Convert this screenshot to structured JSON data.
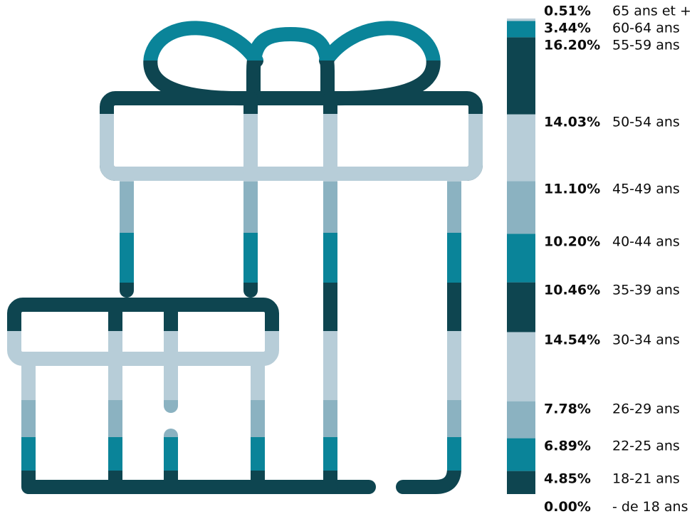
{
  "chart_data": {
    "type": "bar",
    "orientation": "stacked-vertical",
    "unit": "%",
    "categories": [
      "- de 18 ans",
      "18-21 ans",
      "22-25 ans",
      "26-29 ans",
      "30-34 ans",
      "35-39 ans",
      "40-44 ans",
      "45-49 ans",
      "50-54 ans",
      "55-59 ans",
      "60-64 ans",
      "65 ans et +"
    ],
    "values": [
      0.0,
      4.85,
      6.89,
      7.78,
      14.54,
      10.46,
      10.2,
      11.1,
      14.03,
      16.2,
      3.44,
      0.51
    ],
    "labels": [
      "0.00%",
      "4.85%",
      "6.89%",
      "7.78%",
      "14.54%",
      "10.46%",
      "10.20%",
      "11.10%",
      "14.03%",
      "16.20%",
      "3.44%",
      "0.51%"
    ],
    "colors": [
      "#0e4550",
      "#0e4550",
      "#0a8499",
      "#8bb2c1",
      "#b7cdd8",
      "#0e4550",
      "#0a8499",
      "#8bb2c1",
      "#b7cdd8",
      "#0e4550",
      "#0a8499",
      "#b7cdd8"
    ],
    "legend": "right"
  },
  "palette": {
    "dark": "#0e4550",
    "teal": "#0a8499",
    "mid": "#8bb2c1",
    "light": "#b7cdd8"
  },
  "illustration": "gift-boxes-icon"
}
